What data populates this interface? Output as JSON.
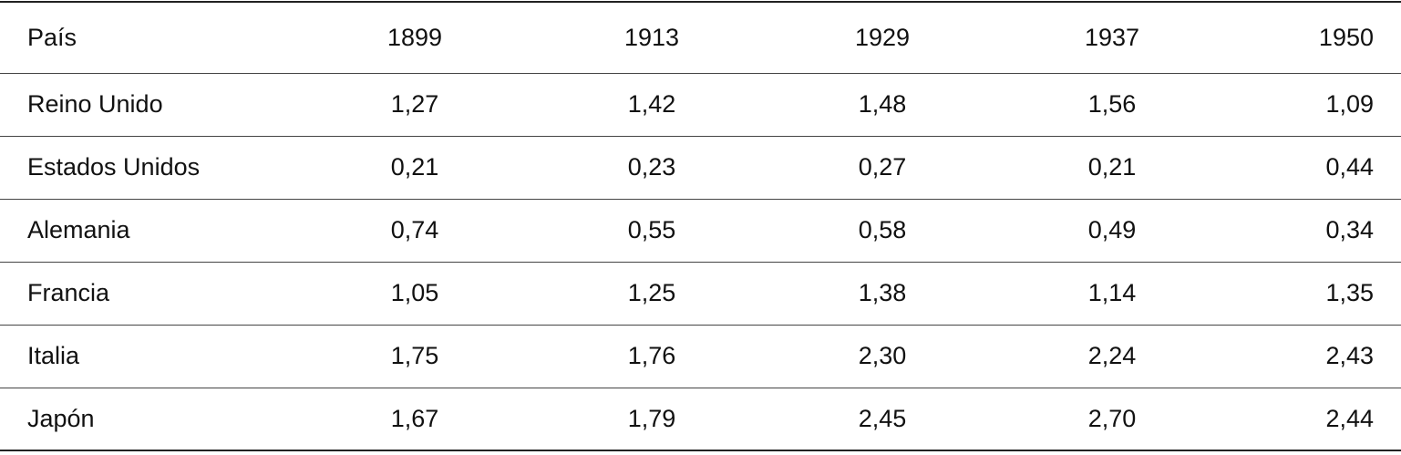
{
  "table": {
    "header": [
      "País",
      "1899",
      "1913",
      "1929",
      "1937",
      "1950"
    ],
    "rows": [
      [
        "Reino Unido",
        "1,27",
        "1,42",
        "1,48",
        "1,56",
        "1,09"
      ],
      [
        "Estados Unidos",
        "0,21",
        "0,23",
        "0,27",
        "0,21",
        "0,44"
      ],
      [
        "Alemania",
        "0,74",
        "0,55",
        "0,58",
        "0,49",
        "0,34"
      ],
      [
        "Francia",
        "1,05",
        "1,25",
        "1,38",
        "1,14",
        "1,35"
      ],
      [
        "Italia",
        "1,75",
        "1,76",
        "2,30",
        "2,24",
        "2,43"
      ],
      [
        "Japón",
        "1,67",
        "1,79",
        "2,45",
        "2,70",
        "2,44"
      ]
    ]
  }
}
